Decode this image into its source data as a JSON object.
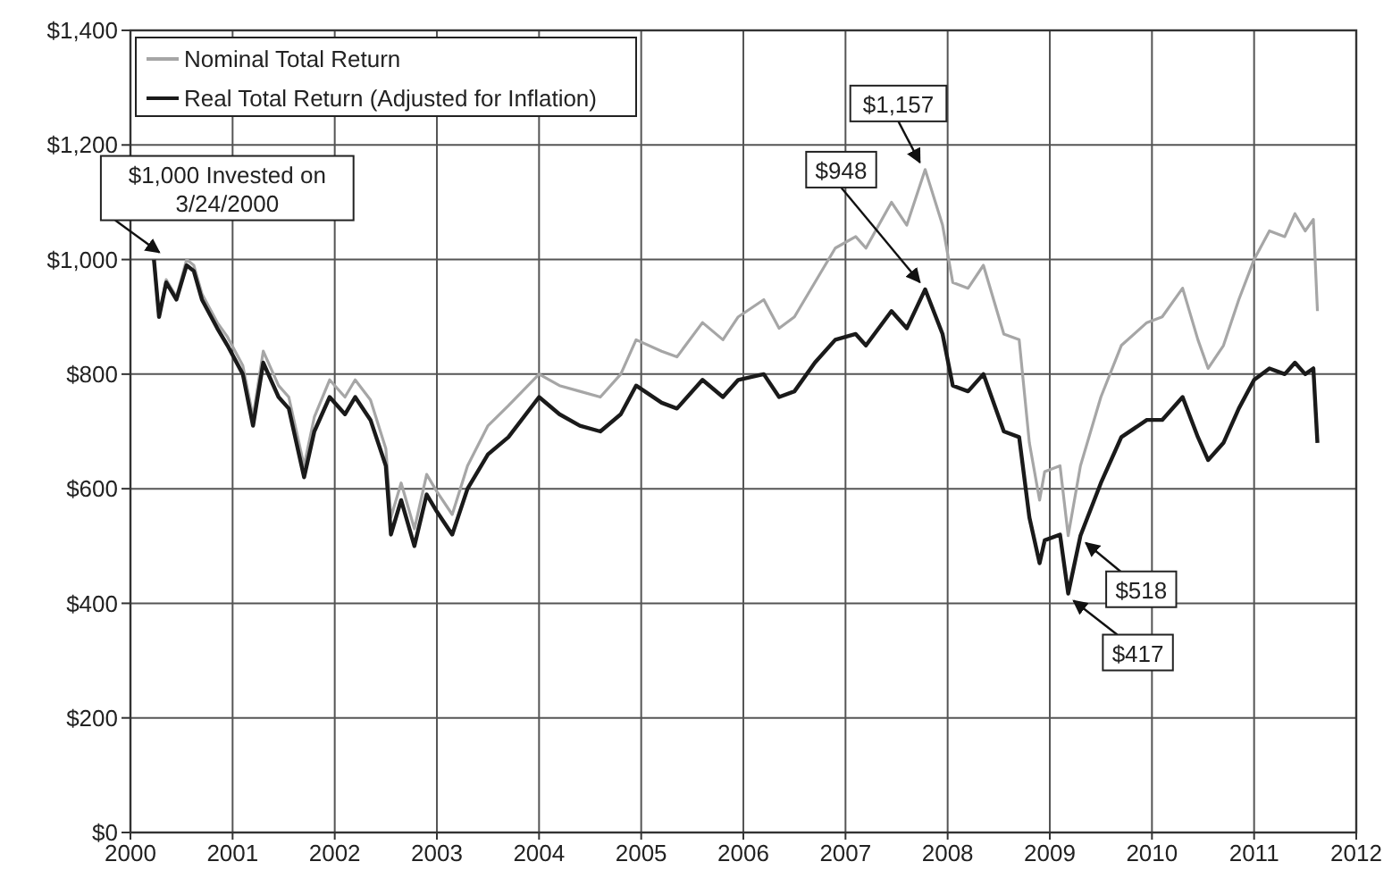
{
  "chart_data": {
    "type": "line",
    "xlim": [
      2000,
      2012
    ],
    "xticks": [
      2000,
      2001,
      2002,
      2003,
      2004,
      2005,
      2006,
      2007,
      2008,
      2009,
      2010,
      2011,
      2012
    ],
    "ylim": [
      0,
      1400
    ],
    "yticks": [
      {
        "value": 0,
        "label": "$0"
      },
      {
        "value": 200,
        "label": "$200"
      },
      {
        "value": 400,
        "label": "$400"
      },
      {
        "value": 600,
        "label": "$600"
      },
      {
        "value": 800,
        "label": "$800"
      },
      {
        "value": 1000,
        "label": "$1,000"
      },
      {
        "value": 1200,
        "label": "$1,200"
      },
      {
        "value": 1400,
        "label": "$1,400"
      }
    ],
    "grid": true,
    "legend": "top left",
    "marker": "none",
    "line_style": "solid",
    "x": [
      2000.23,
      2000.28,
      2000.35,
      2000.45,
      2000.55,
      2000.62,
      2000.7,
      2000.85,
      2000.95,
      2001.1,
      2001.2,
      2001.3,
      2001.45,
      2001.55,
      2001.7,
      2001.8,
      2001.95,
      2002.1,
      2002.2,
      2002.35,
      2002.5,
      2002.55,
      2002.65,
      2002.78,
      2002.9,
      2003.0,
      2003.15,
      2003.3,
      2003.5,
      2003.7,
      2004.0,
      2004.2,
      2004.4,
      2004.6,
      2004.8,
      2004.95,
      2005.2,
      2005.35,
      2005.6,
      2005.8,
      2005.95,
      2006.2,
      2006.35,
      2006.5,
      2006.7,
      2006.9,
      2007.1,
      2007.2,
      2007.45,
      2007.6,
      2007.78,
      2007.95,
      2008.05,
      2008.2,
      2008.35,
      2008.55,
      2008.7,
      2008.8,
      2008.9,
      2008.95,
      2009.1,
      2009.18,
      2009.3,
      2009.5,
      2009.7,
      2009.95,
      2010.1,
      2010.3,
      2010.45,
      2010.55,
      2010.7,
      2010.85,
      2011.0,
      2011.15,
      2011.3,
      2011.4,
      2011.5,
      2011.58,
      2011.62
    ],
    "series": [
      {
        "name": "Nominal Total Return",
        "color": "#a6a6a6",
        "values": [
          1000,
          900,
          965,
          935,
          1000,
          990,
          940,
          890,
          865,
          815,
          725,
          840,
          780,
          760,
          640,
          725,
          790,
          760,
          790,
          755,
          670,
          550,
          610,
          530,
          625,
          595,
          555,
          640,
          710,
          745,
          800,
          780,
          770,
          760,
          800,
          860,
          840,
          830,
          890,
          860,
          900,
          930,
          880,
          900,
          960,
          1020,
          1040,
          1020,
          1100,
          1060,
          1157,
          1060,
          960,
          950,
          990,
          870,
          860,
          680,
          580,
          630,
          640,
          518,
          640,
          760,
          850,
          890,
          900,
          950,
          860,
          810,
          850,
          930,
          1000,
          1050,
          1040,
          1080,
          1050,
          1070,
          910
        ]
      },
      {
        "name": "Real Total Return (Adjusted for Inflation)",
        "color": "#1a1a1a",
        "values": [
          1000,
          900,
          960,
          930,
          990,
          980,
          930,
          880,
          850,
          800,
          710,
          820,
          760,
          740,
          620,
          700,
          760,
          730,
          760,
          720,
          640,
          520,
          580,
          500,
          590,
          560,
          520,
          600,
          660,
          690,
          760,
          730,
          710,
          700,
          730,
          780,
          750,
          740,
          790,
          760,
          790,
          800,
          760,
          770,
          820,
          860,
          870,
          850,
          910,
          880,
          948,
          870,
          780,
          770,
          800,
          700,
          690,
          550,
          470,
          510,
          520,
          417,
          518,
          610,
          690,
          720,
          720,
          760,
          690,
          650,
          680,
          740,
          790,
          810,
          800,
          820,
          800,
          810,
          680
        ]
      }
    ],
    "annotations": [
      {
        "text": "$1,000 Invested on 3/24/2000",
        "x": 2000.23,
        "y": 1000
      },
      {
        "text": "$1,157",
        "x": 2007.78,
        "y": 1157
      },
      {
        "text": "$948",
        "x": 2007.78,
        "y": 948
      },
      {
        "text": "$518",
        "x": 2009.3,
        "y": 518
      },
      {
        "text": "$417",
        "x": 2009.18,
        "y": 417
      }
    ]
  }
}
